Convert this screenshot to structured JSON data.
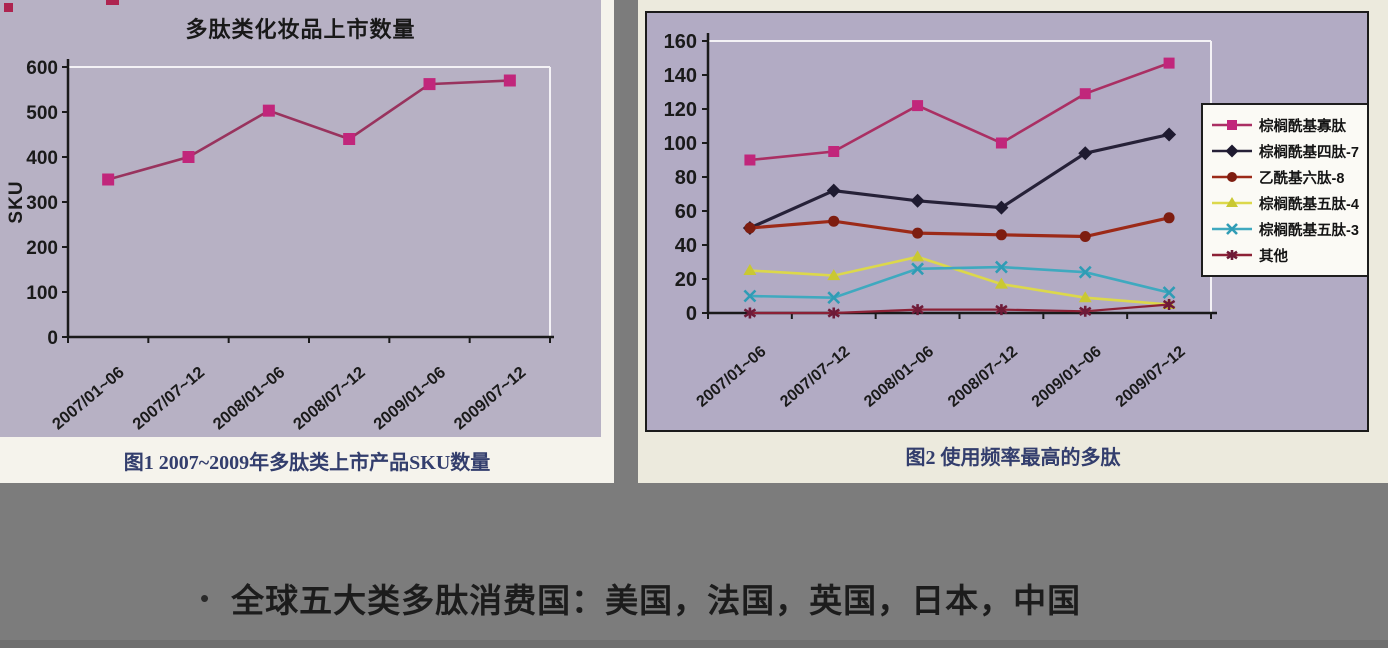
{
  "figure1": {
    "title": "多肽类化妆品上市数量",
    "ylabel": "SKU",
    "caption": "图1 2007~2009年多肽类上市产品SKU数量"
  },
  "figure2": {
    "caption": "图2 使用频率最高的多肽"
  },
  "bullet": {
    "marker": "•",
    "text": "全球五大类多肽消费国：美国，法国，英国，日本，中国"
  },
  "colors": {
    "slide_background": "#7c7c7c",
    "chart_background": "#b5afc4",
    "caption_text": "#333e6d",
    "axis_text": "#1a1a1a"
  },
  "chart_data": [
    {
      "type": "line",
      "title": "多肽类化妆品上市数量",
      "caption": "图1 2007~2009年多肽类上市产品SKU数量",
      "ylabel": "SKU",
      "xlabel": "",
      "categories": [
        "2007/01~06",
        "2007/07~12",
        "2008/01~06",
        "2008/07~12",
        "2009/01~06",
        "2009/07~12"
      ],
      "values": [
        350,
        400,
        503,
        440,
        562,
        570
      ],
      "ylim": [
        0,
        600
      ],
      "ytick_step": 100,
      "grid": "top-and-right-plot-border-only",
      "line_color": "#99335e",
      "line_width": 2.6,
      "marker": "square",
      "marker_color": "#c1267b"
    },
    {
      "type": "line",
      "title": "",
      "caption": "图2 使用频率最高的多肽",
      "ylabel": "",
      "xlabel": "",
      "categories": [
        "2007/01~06",
        "2007/07~12",
        "2008/01~06",
        "2008/07~12",
        "2009/01~06",
        "2009/07~12"
      ],
      "ylim": [
        0,
        160
      ],
      "ytick_step": 20,
      "grid": "top-and-right-plot-border-only",
      "legend_position": "right",
      "series": [
        {
          "name": "棕榈酰基寡肽",
          "values": [
            90,
            95,
            122,
            100,
            129,
            147
          ],
          "line_color": "#aa2f63",
          "line_width": 2.6,
          "marker": "square",
          "marker_color": "#c1267b"
        },
        {
          "name": "棕榈酰基四肽-7",
          "values": [
            50,
            72,
            66,
            62,
            94,
            105
          ],
          "line_color": "#262138",
          "line_width": 3.2,
          "marker": "diamond",
          "marker_color": "#1e1a30"
        },
        {
          "name": "乙酰基六肽-8",
          "values": [
            50,
            54,
            47,
            46,
            45,
            56
          ],
          "line_color": "#9c2a18",
          "line_width": 3.2,
          "marker": "circle",
          "marker_color": "#7e1d10"
        },
        {
          "name": "棕榈酰基五肽-4",
          "values": [
            25,
            22,
            33,
            17,
            9,
            5
          ],
          "line_color": "#dcd84b",
          "line_width": 2.6,
          "marker": "triangle",
          "marker_color": "#c9c832"
        },
        {
          "name": "棕榈酰基五肽-3",
          "values": [
            10,
            9,
            26,
            27,
            24,
            12
          ],
          "line_color": "#3fa9bf",
          "line_width": 2.6,
          "marker": "x",
          "marker_color": "#2f9cb5"
        },
        {
          "name": "其他",
          "values": [
            0,
            0,
            2,
            2,
            1,
            5
          ],
          "line_color": "#8c2136",
          "line_width": 2.2,
          "marker": "asterisk",
          "marker_color": "#6e1b38"
        }
      ]
    }
  ]
}
